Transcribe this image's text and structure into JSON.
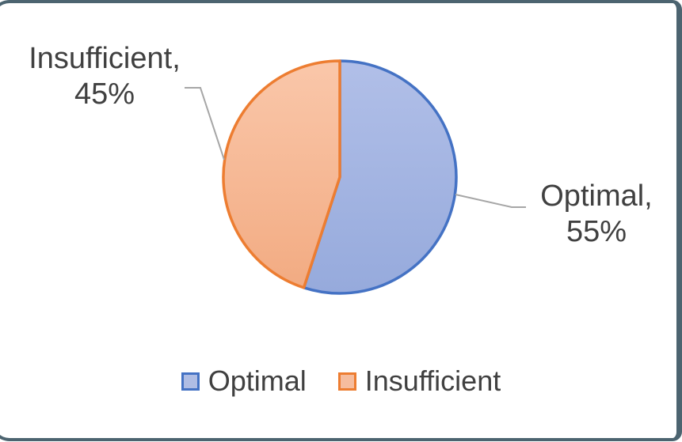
{
  "chart": {
    "background": "#FFFFFF",
    "frame_color": "#4C6470"
  },
  "chart_data": {
    "type": "pie",
    "title": "",
    "categories": [
      "Optimal",
      "Insufficient"
    ],
    "values": [
      55,
      45
    ],
    "unit": "%",
    "start_angle_deg": 0,
    "direction": "clockwise",
    "legend_position": "bottom",
    "grid": "off",
    "slice_styles": [
      {
        "name": "Optimal",
        "fill_gradient": [
          "#B1BFE8",
          "#96AADC"
        ],
        "border": "#4472C4"
      },
      {
        "name": "Insufficient",
        "fill_gradient": [
          "#FAC7AA",
          "#F2AB82"
        ],
        "border": "#ED7D31"
      }
    ],
    "data_labels": [
      {
        "category": "Optimal",
        "value": 55,
        "line1": "Optimal,",
        "line2": "55%"
      },
      {
        "category": "Insufficient",
        "value": 45,
        "line1": "Insufficient,",
        "line2": "45%"
      }
    ],
    "leader_line_color": "#A6A6A6",
    "label_text_color": "#404040"
  },
  "legend": {
    "text_color": "#404040",
    "items": [
      {
        "label": "Optimal",
        "swatch_fill": "#AFBDE4",
        "swatch_border": "#4472C4"
      },
      {
        "label": "Insufficient",
        "swatch_fill": "#F6BD9E",
        "swatch_border": "#ED7D31"
      }
    ]
  }
}
